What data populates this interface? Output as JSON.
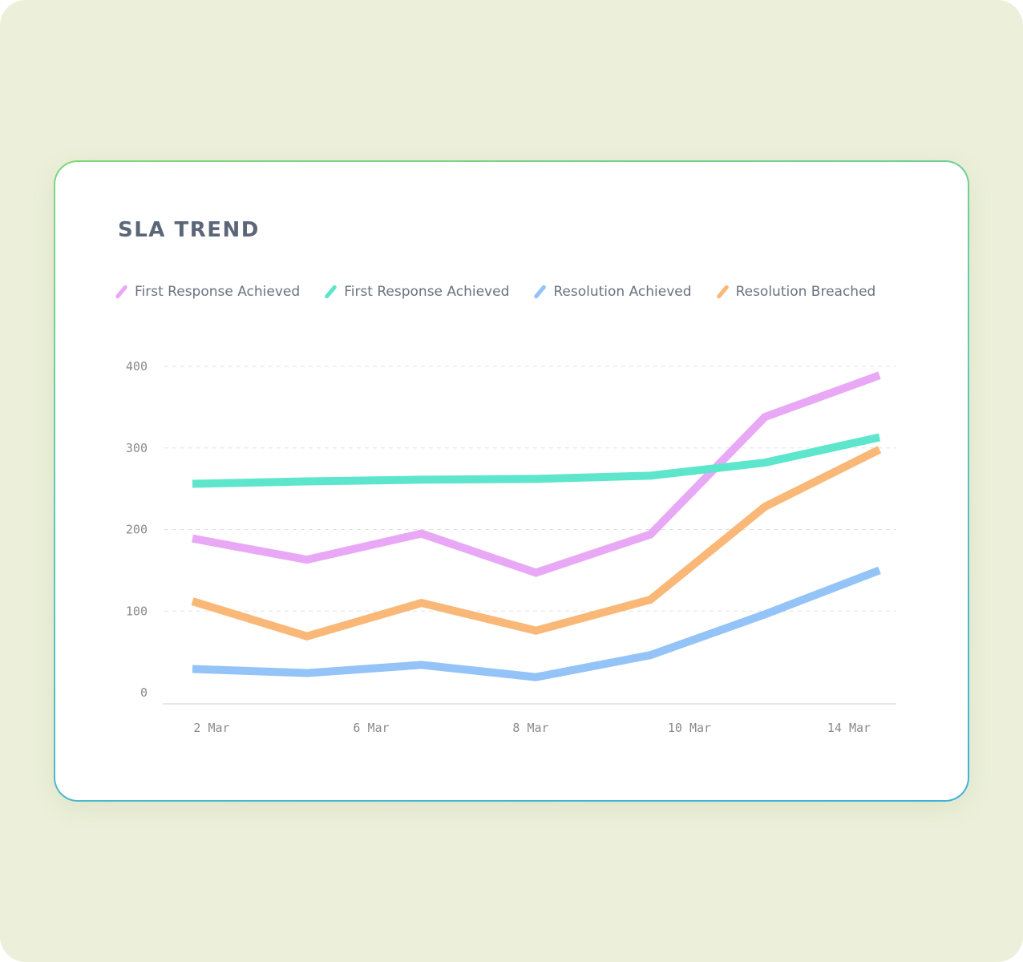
{
  "chart_data": {
    "type": "line",
    "title": "SLA TREND",
    "xlabel": "",
    "ylabel": "",
    "ylim": [
      0,
      400
    ],
    "y_ticks": [
      "0",
      "100",
      "200",
      "300",
      "400"
    ],
    "y_tick_values": [
      0,
      100,
      200,
      300,
      400
    ],
    "x_tick_labels": [
      "2 Mar",
      "6 Mar",
      "8 Mar",
      "10 Mar",
      "14 Mar"
    ],
    "grid": true,
    "legend_position": "top-left",
    "series": [
      {
        "name": "First Response Achieved",
        "color": "#E9A8F5",
        "values": [
          189,
          163,
          195,
          147,
          194,
          338,
          389
        ]
      },
      {
        "name": "First Response Achieved",
        "color": "#5EE6CC",
        "values": [
          256,
          259,
          261,
          262,
          266,
          282,
          313
        ]
      },
      {
        "name": "Resolution Achieved",
        "color": "#93C3F7",
        "values": [
          29,
          24,
          34,
          19,
          46,
          96,
          150
        ]
      },
      {
        "name": "Resolution Breached",
        "color": "#F9B877",
        "values": [
          112,
          69,
          110,
          76,
          114,
          228,
          298
        ]
      }
    ]
  }
}
